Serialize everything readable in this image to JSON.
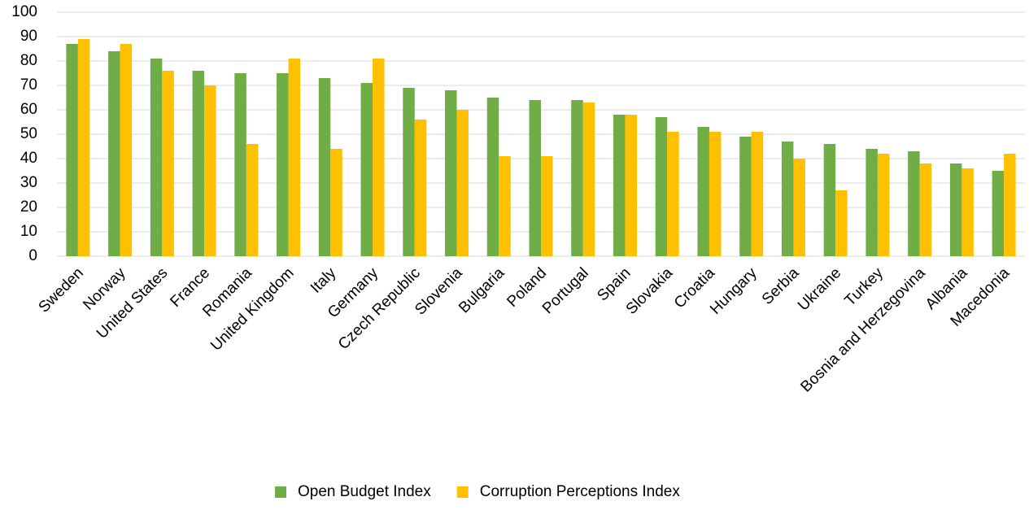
{
  "chart_data": {
    "type": "bar",
    "categories": [
      "Sweden",
      "Norway",
      "United States",
      "France",
      "Romania",
      "United Kingdom",
      "Italy",
      "Germany",
      "Czech Republic",
      "Slovenia",
      "Bulgaria",
      "Poland",
      "Portugal",
      "Spain",
      "Slovakia",
      "Croatia",
      "Hungary",
      "Serbia",
      "Ukraine",
      "Turkey",
      "Bosnia and Herzegovina",
      "Albania",
      "Macedonia"
    ],
    "series": [
      {
        "name": "Open Budget Index",
        "color": "#70ad47",
        "values": [
          87,
          84,
          81,
          76,
          75,
          75,
          73,
          71,
          69,
          68,
          65,
          64,
          64,
          58,
          57,
          53,
          49,
          47,
          46,
          44,
          43,
          38,
          35
        ]
      },
      {
        "name": "Corruption Perceptions Index",
        "color": "#ffc000",
        "values": [
          89,
          87,
          76,
          70,
          46,
          81,
          44,
          81,
          56,
          60,
          41,
          41,
          63,
          58,
          51,
          51,
          51,
          40,
          27,
          42,
          38,
          36,
          42
        ]
      }
    ],
    "ylim": [
      0,
      100
    ],
    "yticks": [
      0,
      10,
      20,
      30,
      40,
      50,
      60,
      70,
      80,
      90,
      100
    ],
    "grid": true,
    "legend": "bottom"
  }
}
